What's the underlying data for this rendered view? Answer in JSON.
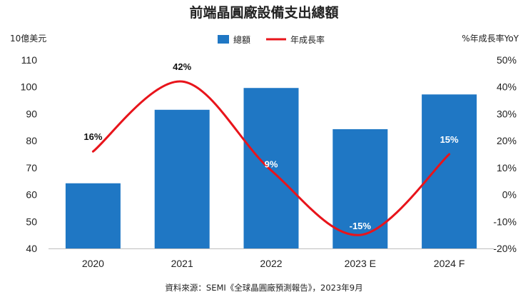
{
  "title": "前端晶圓廠設備支出總額",
  "left_unit": "10億美元",
  "right_unit": "%年成長率YoY",
  "source": "資料來源：SEMI《全球晶圓廠預測報告》，2023年9月",
  "colors": {
    "bar": "#1f77c4",
    "line": "#e8141b",
    "label_dark": "#111111",
    "label_light": "#ffffff"
  },
  "legend": [
    {
      "name": "總額",
      "kind": "bar"
    },
    {
      "name": "年成長率",
      "kind": "line"
    }
  ],
  "chart_data": {
    "type": "bar",
    "categories": [
      "2020",
      "2021",
      "2022",
      "2023 E",
      "2024 F"
    ],
    "series": [
      {
        "name": "總額",
        "type": "bar",
        "axis": "left",
        "values": [
          64.2,
          91.5,
          99.6,
          84.3,
          97.2
        ]
      },
      {
        "name": "年成長率",
        "type": "line",
        "axis": "right",
        "values": [
          16,
          42,
          9,
          -15,
          15
        ],
        "labels": [
          "16%",
          "42%",
          "9%",
          "-15%",
          "15%"
        ]
      }
    ],
    "y_left": {
      "min": 40,
      "max": 110,
      "ticks": [
        "40",
        "50",
        "60",
        "70",
        "80",
        "90",
        "100",
        "110"
      ]
    },
    "y_right": {
      "min": -20,
      "max": 50,
      "ticks": [
        "-20%",
        "-10%",
        "0%",
        "10%",
        "20%",
        "30%",
        "40%",
        "50%"
      ]
    },
    "legend_position": "top-center",
    "grid": false
  }
}
